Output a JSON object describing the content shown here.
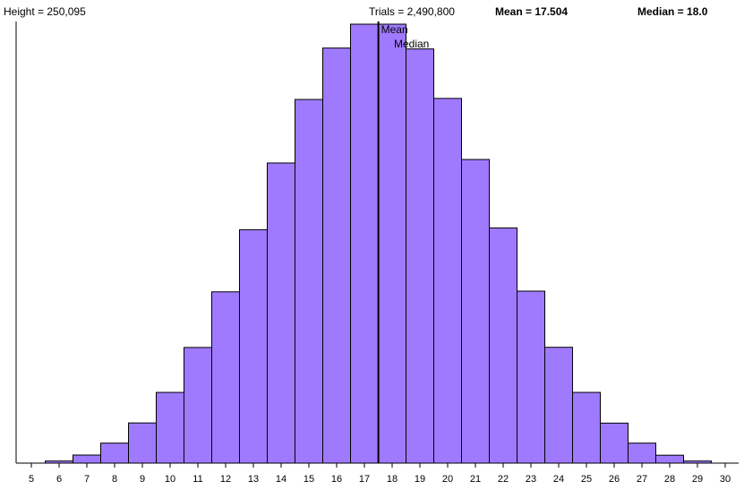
{
  "header": {
    "height_label": "Height = 250,095",
    "trials_label": "Trials = 2,490,800",
    "mean_label": "Mean = 17.504",
    "median_label": "Median = 18.0"
  },
  "chart_data": {
    "type": "bar",
    "categories": [
      5,
      6,
      7,
      8,
      9,
      10,
      11,
      12,
      13,
      14,
      15,
      16,
      17,
      18,
      19,
      20,
      21,
      22,
      23,
      24,
      25,
      26,
      27,
      28,
      29,
      30
    ],
    "values": [
      0,
      1200,
      4600,
      11400,
      22900,
      40300,
      65900,
      97600,
      133000,
      171000,
      207200,
      236500,
      250095,
      250095,
      236000,
      207800,
      173000,
      134000,
      98000,
      66000,
      40300,
      22800,
      11400,
      4500,
      1200,
      0
    ],
    "ylim": [
      0,
      250095
    ],
    "xlim": [
      4.5,
      30.5
    ],
    "mean": 17.504,
    "median": 18.0,
    "bar_color": "#9f7aff",
    "bar_stroke": "#000000",
    "markers": [
      {
        "label": "Mean",
        "value": 17.504
      },
      {
        "label": "Median",
        "value": 18.0
      }
    ]
  }
}
